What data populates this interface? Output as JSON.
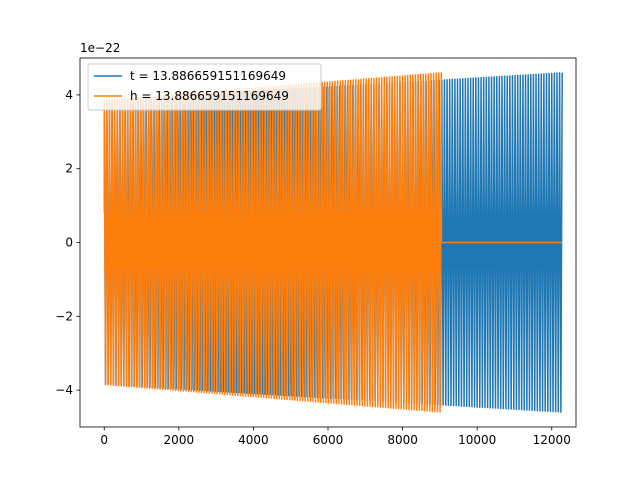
{
  "chart_data": {
    "type": "line",
    "title": "",
    "xlabel": "",
    "ylabel": "",
    "y_offset_label": "1e−22",
    "xlim": [
      -650,
      12650
    ],
    "ylim": [
      -5.0,
      5.0
    ],
    "x_ticks": [
      0,
      2000,
      4000,
      6000,
      8000,
      10000,
      12000
    ],
    "x_tick_labels": [
      "0",
      "2000",
      "4000",
      "6000",
      "8000",
      "10000",
      "12000"
    ],
    "y_ticks": [
      -4,
      -2,
      0,
      2,
      4
    ],
    "y_tick_labels": [
      "−4",
      "−2",
      "0",
      "2",
      "4"
    ],
    "grid": false,
    "legend": {
      "placement": "top-left",
      "entries": [
        "t = 13.886659151169649",
        "h = 13.886659151169649"
      ]
    },
    "series": [
      {
        "color": "#1f77b4",
        "x_range": [
          0,
          12280
        ],
        "amplitude_start": 3.85,
        "amplitude_end": 4.6,
        "cycles": 175,
        "initial_value": 1.6
      },
      {
        "color": "#ff7f0e",
        "x_range": [
          0,
          9040
        ],
        "amplitude_start": 3.85,
        "amplitude_end": 4.6,
        "cycles": 130,
        "initial_value": 0.8,
        "tail_x_range": [
          9040,
          12280
        ],
        "tail_value": 0
      }
    ]
  }
}
